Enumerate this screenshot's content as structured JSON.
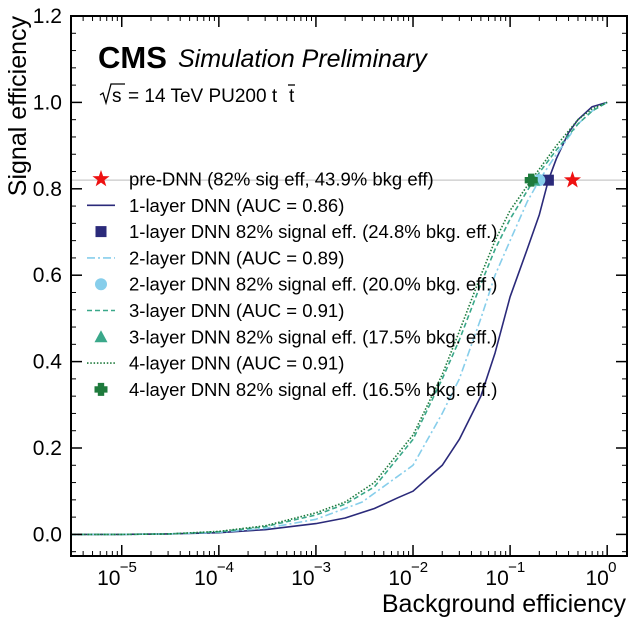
{
  "chart_data": {
    "type": "line",
    "xscale": "log",
    "xlabel": "Background efficiency",
    "ylabel": "Signal efficiency",
    "xlim": [
      3e-06,
      1.6
    ],
    "ylim": [
      -0.05,
      1.2
    ],
    "x_ticks": [
      {
        "value": 1e-05,
        "base": "10",
        "exp": "−5"
      },
      {
        "value": 0.0001,
        "base": "10",
        "exp": "−4"
      },
      {
        "value": 0.001,
        "base": "10",
        "exp": "−3"
      },
      {
        "value": 0.01,
        "base": "10",
        "exp": "−2"
      },
      {
        "value": 0.1,
        "base": "10",
        "exp": "−1"
      },
      {
        "value": 1,
        "base": "10",
        "exp": "0"
      }
    ],
    "y_ticks": [
      {
        "value": 0.0,
        "label": "0.0"
      },
      {
        "value": 0.2,
        "label": "0.2"
      },
      {
        "value": 0.4,
        "label": "0.4"
      },
      {
        "value": 0.6,
        "label": "0.6"
      },
      {
        "value": 0.8,
        "label": "0.8"
      },
      {
        "value": 1.0,
        "label": "1.0"
      },
      {
        "value": 1.2,
        "label": "1.2"
      }
    ],
    "header": {
      "cms": "CMS",
      "subtitle": "Simulation Preliminary",
      "energy_sqrt": "s",
      "energy": "= 14 TeV PU200 t",
      "energy_tbar": "t"
    },
    "reference_line": {
      "y": 0.82,
      "color": "#c8c8c8"
    },
    "legend_position": "center-left",
    "series": [
      {
        "name": "1-layer DNN (AUC = 0.86)",
        "color": "#2b2a7a",
        "dash": "solid",
        "points": [
          [
            3e-06,
            0.0
          ],
          [
            1e-05,
            0.0
          ],
          [
            3e-05,
            0.001
          ],
          [
            0.0001,
            0.004
          ],
          [
            0.0003,
            0.011
          ],
          [
            0.001,
            0.025
          ],
          [
            0.002,
            0.038
          ],
          [
            0.004,
            0.06
          ],
          [
            0.007,
            0.085
          ],
          [
            0.01,
            0.1
          ],
          [
            0.02,
            0.16
          ],
          [
            0.03,
            0.22
          ],
          [
            0.05,
            0.32
          ],
          [
            0.07,
            0.42
          ],
          [
            0.1,
            0.55
          ],
          [
            0.15,
            0.66
          ],
          [
            0.2,
            0.74
          ],
          [
            0.248,
            0.82
          ],
          [
            0.3,
            0.87
          ],
          [
            0.4,
            0.93
          ],
          [
            0.5,
            0.96
          ],
          [
            0.7,
            0.99
          ],
          [
            1.0,
            1.0
          ]
        ]
      },
      {
        "name": "2-layer DNN (AUC = 0.89)",
        "color": "#87ceeb",
        "dash": "dashdot",
        "points": [
          [
            3e-06,
            0.0
          ],
          [
            1e-05,
            0.0
          ],
          [
            3e-05,
            0.001
          ],
          [
            0.0001,
            0.005
          ],
          [
            0.0003,
            0.014
          ],
          [
            0.001,
            0.035
          ],
          [
            0.003,
            0.075
          ],
          [
            0.01,
            0.16
          ],
          [
            0.02,
            0.28
          ],
          [
            0.03,
            0.36
          ],
          [
            0.05,
            0.5
          ],
          [
            0.07,
            0.6
          ],
          [
            0.1,
            0.68
          ],
          [
            0.15,
            0.77
          ],
          [
            0.2,
            0.82
          ],
          [
            0.3,
            0.88
          ],
          [
            0.5,
            0.95
          ],
          [
            0.7,
            0.98
          ],
          [
            1.0,
            1.0
          ]
        ]
      },
      {
        "name": "3-layer DNN (AUC = 0.91)",
        "color": "#3aa88a",
        "dash": "dashed",
        "points": [
          [
            3e-06,
            0.0
          ],
          [
            1e-05,
            0.0
          ],
          [
            3e-05,
            0.001
          ],
          [
            0.0001,
            0.006
          ],
          [
            0.0003,
            0.018
          ],
          [
            0.001,
            0.045
          ],
          [
            0.002,
            0.07
          ],
          [
            0.004,
            0.11
          ],
          [
            0.01,
            0.22
          ],
          [
            0.02,
            0.36
          ],
          [
            0.03,
            0.45
          ],
          [
            0.05,
            0.58
          ],
          [
            0.07,
            0.66
          ],
          [
            0.1,
            0.73
          ],
          [
            0.175,
            0.82
          ],
          [
            0.3,
            0.89
          ],
          [
            0.5,
            0.95
          ],
          [
            0.7,
            0.98
          ],
          [
            1.0,
            1.0
          ]
        ]
      },
      {
        "name": "4-layer DNN (AUC = 0.91)",
        "color": "#1e7a3c",
        "dash": "dotted",
        "points": [
          [
            3e-06,
            0.0
          ],
          [
            1e-05,
            0.0
          ],
          [
            3e-05,
            0.001
          ],
          [
            0.0001,
            0.007
          ],
          [
            0.0003,
            0.02
          ],
          [
            0.001,
            0.05
          ],
          [
            0.002,
            0.075
          ],
          [
            0.004,
            0.12
          ],
          [
            0.01,
            0.23
          ],
          [
            0.02,
            0.37
          ],
          [
            0.03,
            0.47
          ],
          [
            0.05,
            0.6
          ],
          [
            0.07,
            0.68
          ],
          [
            0.1,
            0.75
          ],
          [
            0.165,
            0.82
          ],
          [
            0.3,
            0.9
          ],
          [
            0.5,
            0.96
          ],
          [
            0.7,
            0.985
          ],
          [
            1.0,
            1.0
          ]
        ]
      }
    ],
    "markers": [
      {
        "name": "pre-DNN (82% sig eff, 43.9% bkg eff)",
        "x": 0.439,
        "y": 0.82,
        "shape": "star",
        "color": "#ee1111"
      },
      {
        "name": "1-layer DNN 82% signal eff. (24.8% bkg. eff.)",
        "x": 0.248,
        "y": 0.82,
        "shape": "square",
        "color": "#2b2a7a"
      },
      {
        "name": "2-layer DNN 82% signal eff. (20.0% bkg. eff.)",
        "x": 0.2,
        "y": 0.82,
        "shape": "circle",
        "color": "#87ceeb"
      },
      {
        "name": "3-layer DNN 82% signal eff. (17.5% bkg. eff.)",
        "x": 0.175,
        "y": 0.82,
        "shape": "triangle",
        "color": "#3aa88a"
      },
      {
        "name": "4-layer DNN 82% signal eff. (16.5% bkg. eff.)",
        "x": 0.165,
        "y": 0.82,
        "shape": "plus",
        "color": "#1e7a3c"
      }
    ],
    "legend": [
      {
        "label": "pre-DNN (82% sig eff, 43.9% bkg eff)",
        "kind": "marker",
        "shape": "star",
        "color": "#ee1111"
      },
      {
        "label": "1-layer DNN (AUC = 0.86)",
        "kind": "line",
        "dash": "solid",
        "color": "#2b2a7a"
      },
      {
        "label": "1-layer DNN 82% signal eff. (24.8% bkg. eff.)",
        "kind": "marker",
        "shape": "square",
        "color": "#2b2a7a"
      },
      {
        "label": "2-layer DNN (AUC = 0.89)",
        "kind": "line",
        "dash": "dashdot",
        "color": "#87ceeb"
      },
      {
        "label": "2-layer DNN 82% signal eff. (20.0% bkg. eff.)",
        "kind": "marker",
        "shape": "circle",
        "color": "#87ceeb"
      },
      {
        "label": "3-layer DNN (AUC = 0.91)",
        "kind": "line",
        "dash": "dashed",
        "color": "#3aa88a"
      },
      {
        "label": "3-layer DNN 82% signal eff. (17.5% bkg. eff.)",
        "kind": "marker",
        "shape": "triangle",
        "color": "#3aa88a"
      },
      {
        "label": "4-layer DNN (AUC = 0.91)",
        "kind": "line",
        "dash": "dotted",
        "color": "#1e7a3c"
      },
      {
        "label": "4-layer DNN 82% signal eff. (16.5% bkg. eff.)",
        "kind": "marker",
        "shape": "plus",
        "color": "#1e7a3c"
      }
    ]
  }
}
